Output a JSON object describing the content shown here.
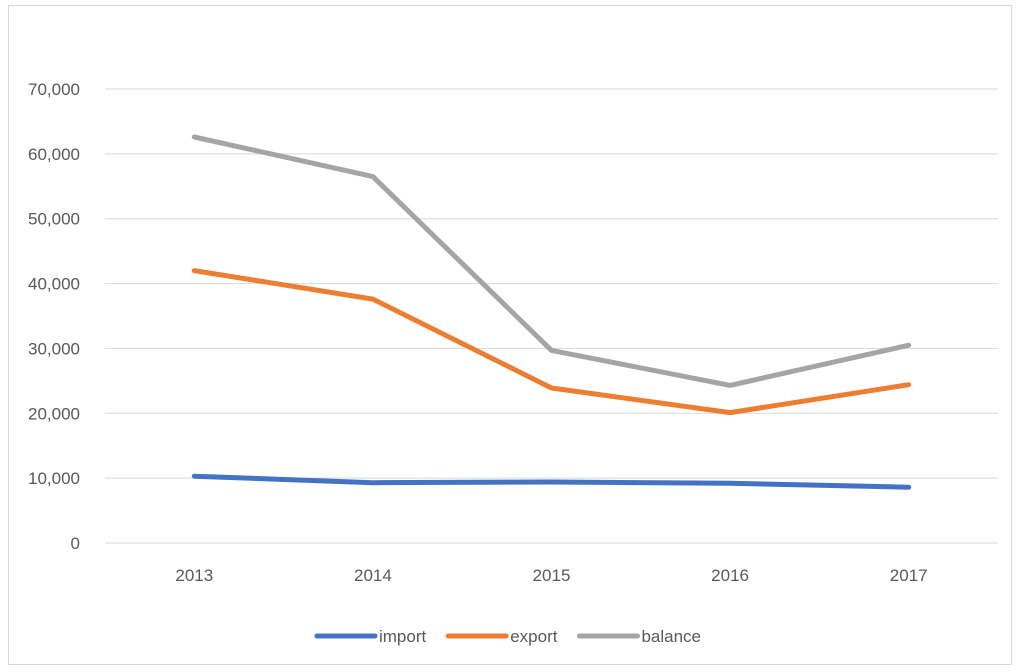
{
  "chart_data": {
    "type": "line",
    "title": "",
    "xlabel": "",
    "ylabel": "",
    "categories": [
      "2013",
      "2014",
      "2015",
      "2016",
      "2017"
    ],
    "ylim": [
      0,
      70000
    ],
    "yticks": [
      "0",
      "10,000",
      "20,000",
      "30,000",
      "40,000",
      "50,000",
      "60,000",
      "70,000"
    ],
    "ytick_values": [
      0,
      10000,
      20000,
      30000,
      40000,
      50000,
      60000,
      70000
    ],
    "grid": true,
    "legend_position": "bottom",
    "series": [
      {
        "name": "import",
        "color": "#4472c4",
        "values": [
          10300,
          9300,
          9400,
          9200,
          8600
        ]
      },
      {
        "name": "export",
        "color": "#ed7d31",
        "values": [
          42000,
          37600,
          23900,
          20100,
          24400
        ]
      },
      {
        "name": "balance",
        "color": "#a5a5a5",
        "values": [
          62600,
          56500,
          29700,
          24300,
          30500
        ]
      }
    ]
  }
}
